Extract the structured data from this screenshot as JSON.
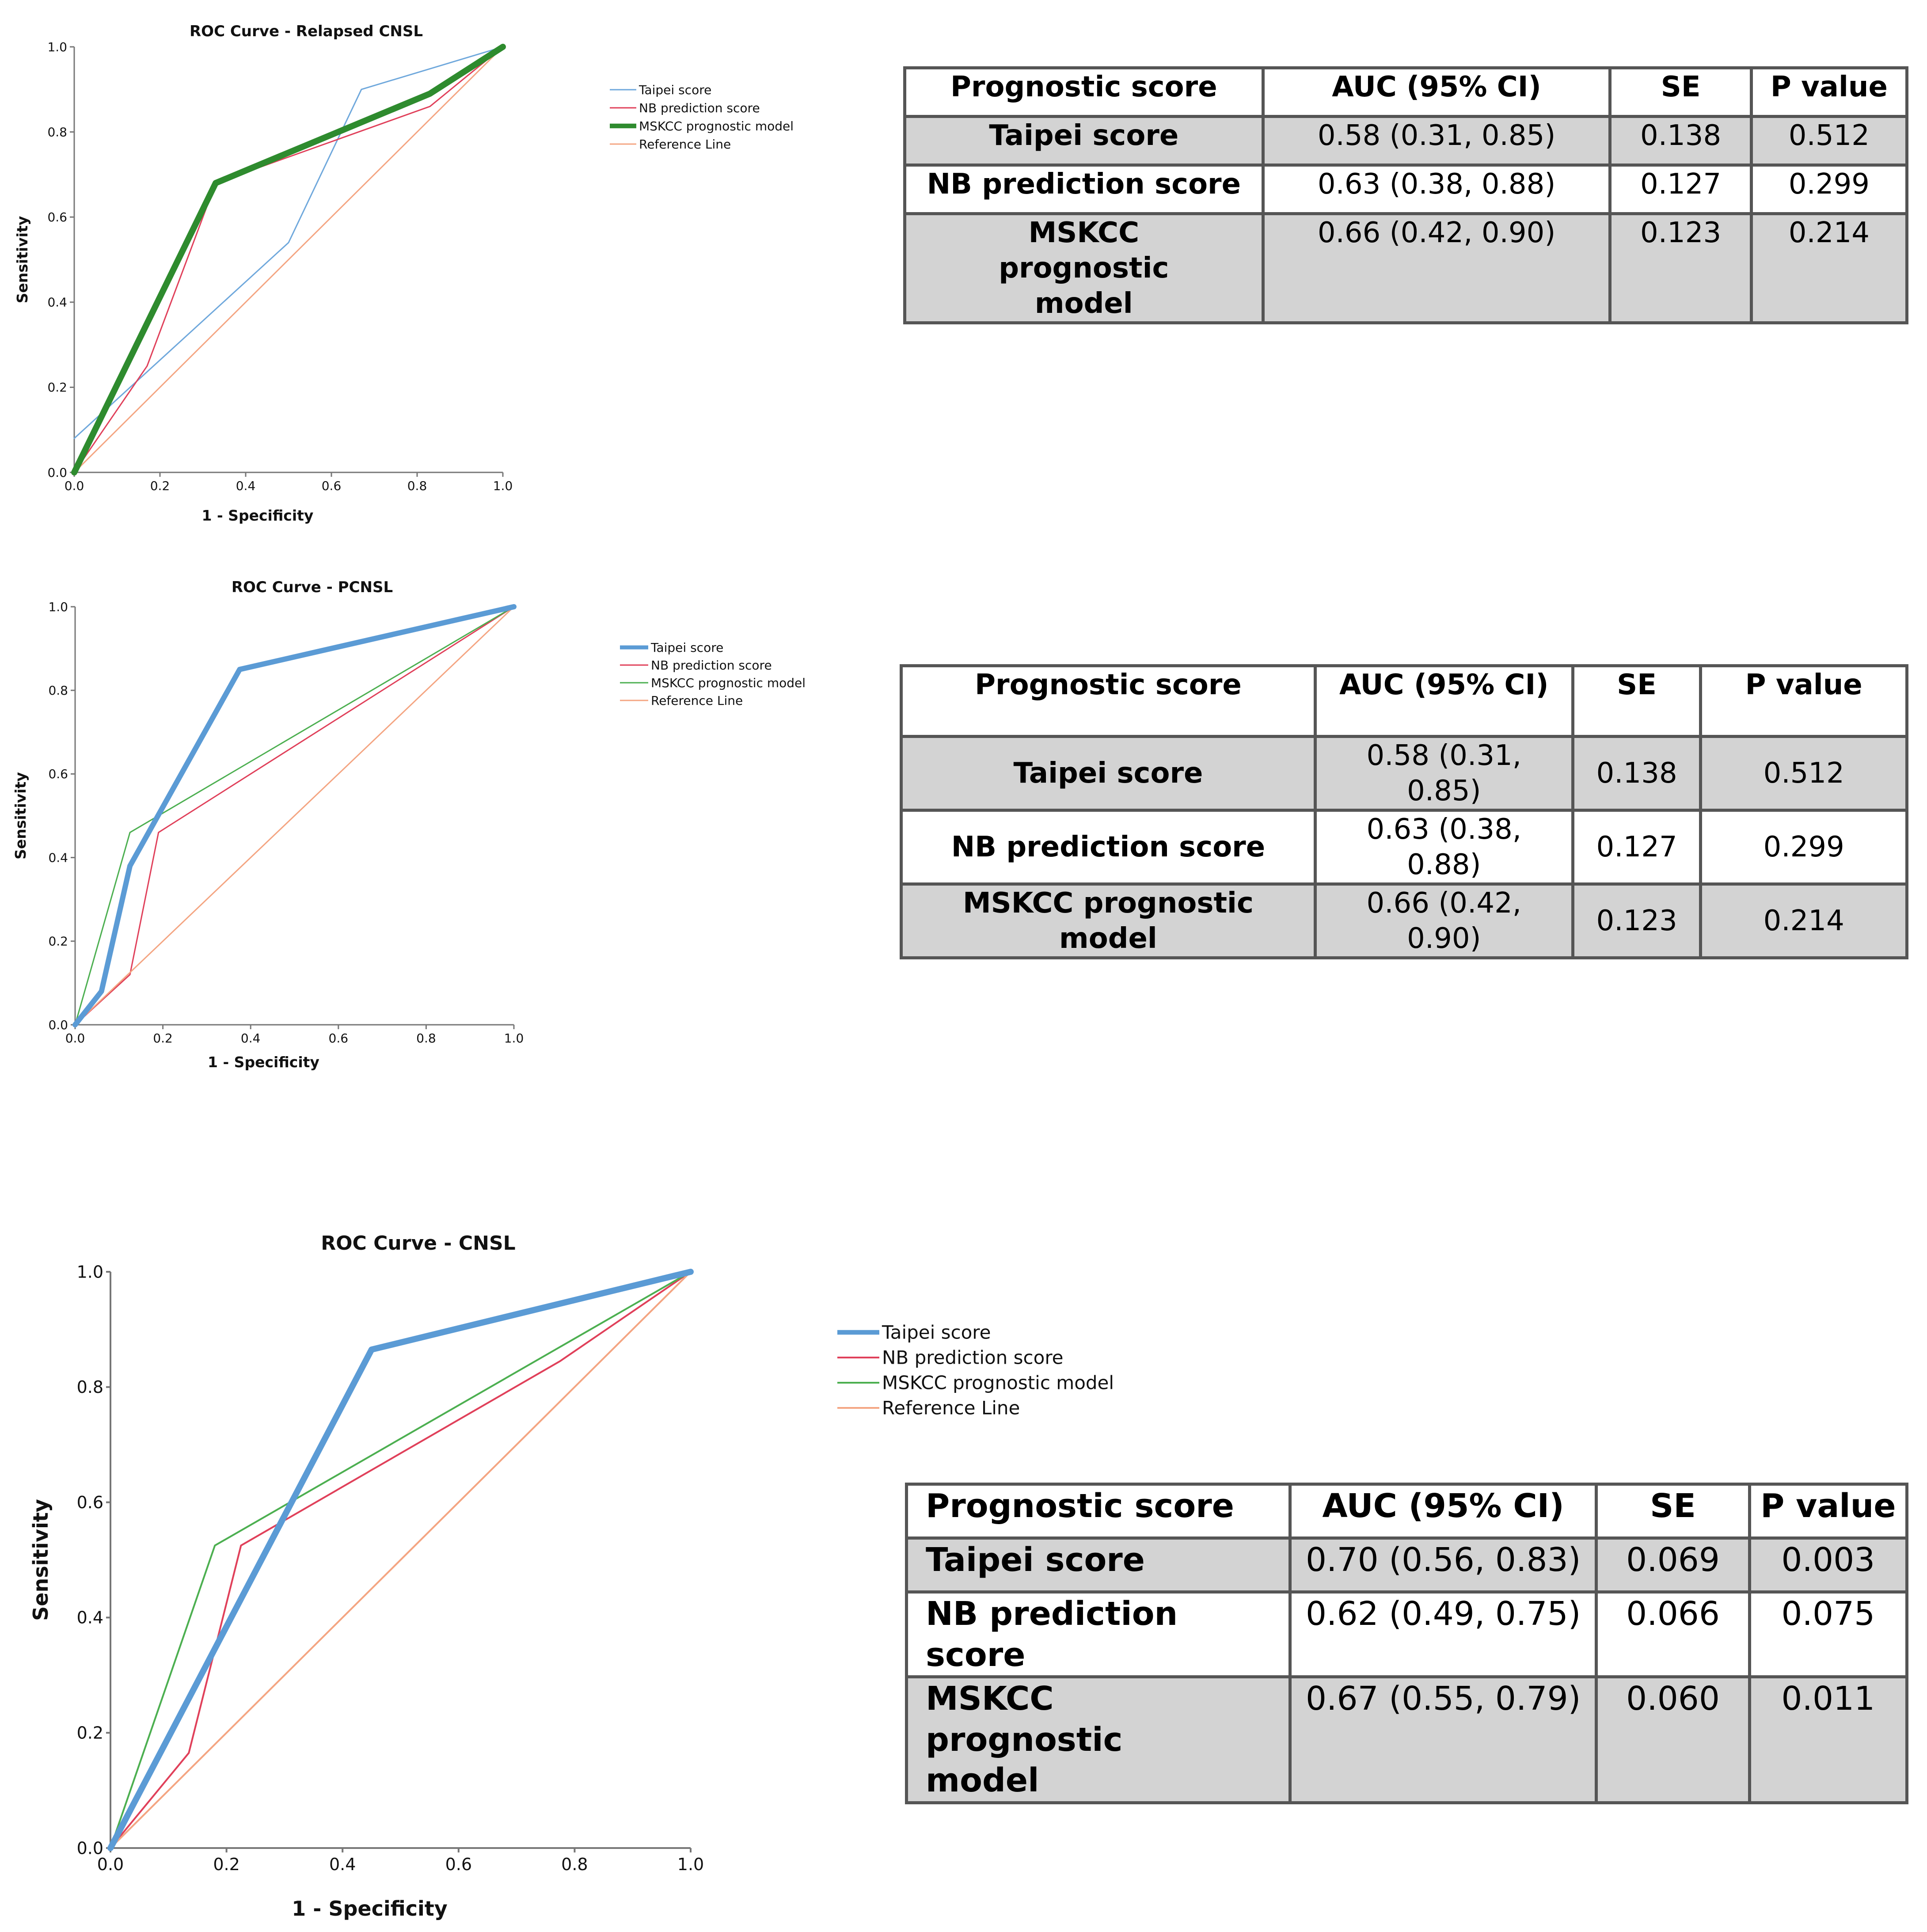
{
  "colors": {
    "taipei": "#6fa8dc",
    "taipei_thick": "#5b9bd5",
    "nb": "#e0405a",
    "mskcc": "#4caf50",
    "mskcc_thick": "#2e8b2e",
    "reference": "#f4a582",
    "axis": "#777777",
    "table_border": "#555555",
    "table_shade": "#d3d3d3"
  },
  "chart_data": [
    {
      "type": "line",
      "title": "ROC Curve - Relapsed CNSL",
      "xlabel": "1 - Specificity",
      "ylabel": "Sensitivity",
      "xlim": [
        0,
        1
      ],
      "ylim": [
        0,
        1
      ],
      "xticks": [
        "0.0",
        "0.2",
        "0.4",
        "0.6",
        "0.8",
        "1.0"
      ],
      "yticks": [
        "0.0",
        "0.2",
        "0.4",
        "0.6",
        "0.8",
        "1.0"
      ],
      "emphasized": "MSKCC prognostic model",
      "legend_position": "right",
      "series": [
        {
          "name": "Taipei score",
          "color_key": "taipei",
          "x": [
            0,
            0.5,
            0.67,
            1.0
          ],
          "y": [
            0.08,
            0.54,
            0.9,
            1.0
          ]
        },
        {
          "name": "NB prediction score",
          "color_key": "nb",
          "x": [
            0,
            0.17,
            0.33,
            0.83,
            1.0
          ],
          "y": [
            0,
            0.25,
            0.68,
            0.86,
            1.0
          ]
        },
        {
          "name": "MSKCC prognostic model",
          "color_key": "mskcc_thick",
          "x": [
            0,
            0.33,
            0.83,
            1.0
          ],
          "y": [
            0,
            0.68,
            0.89,
            1.0
          ]
        },
        {
          "name": "Reference Line",
          "color_key": "reference",
          "x": [
            0,
            1
          ],
          "y": [
            0,
            1
          ]
        }
      ]
    },
    {
      "type": "line",
      "title": "ROC Curve - PCNSL",
      "xlabel": "1 - Specificity",
      "ylabel": "Sensitivity",
      "xlim": [
        0,
        1
      ],
      "ylim": [
        0,
        1
      ],
      "xticks": [
        "0.0",
        "0.2",
        "0.4",
        "0.6",
        "0.8",
        "1.0"
      ],
      "yticks": [
        "0.0",
        "0.2",
        "0.4",
        "0.6",
        "0.8",
        "1.0"
      ],
      "emphasized": "Taipei score",
      "legend_position": "right",
      "series": [
        {
          "name": "Taipei score",
          "color_key": "taipei_thick",
          "x": [
            0,
            0.06,
            0.125,
            0.375,
            1.0
          ],
          "y": [
            0,
            0.08,
            0.38,
            0.85,
            1.0
          ]
        },
        {
          "name": "NB prediction score",
          "color_key": "nb",
          "x": [
            0,
            0.125,
            0.19,
            1.0
          ],
          "y": [
            0,
            0.12,
            0.46,
            1.0
          ]
        },
        {
          "name": "MSKCC prognostic model",
          "color_key": "mskcc",
          "x": [
            0,
            0.125,
            1.0
          ],
          "y": [
            0,
            0.46,
            1.0
          ]
        },
        {
          "name": "Reference Line",
          "color_key": "reference",
          "x": [
            0,
            1
          ],
          "y": [
            0,
            1
          ]
        }
      ]
    },
    {
      "type": "line",
      "title": "ROC Curve - CNSL",
      "xlabel": "1 - Specificity",
      "ylabel": "Sensitivity",
      "xlim": [
        0,
        1
      ],
      "ylim": [
        0,
        1
      ],
      "xticks": [
        "0.0",
        "0.2",
        "0.4",
        "0.6",
        "0.8",
        "1.0"
      ],
      "yticks": [
        "0.0",
        "0.2",
        "0.4",
        "0.6",
        "0.8",
        "1.0"
      ],
      "emphasized": "Taipei score",
      "legend_position": "right",
      "series": [
        {
          "name": "Taipei score",
          "color_key": "taipei_thick",
          "x": [
            0,
            0.45,
            1.0
          ],
          "y": [
            0,
            0.865,
            1.0
          ]
        },
        {
          "name": "NB prediction score",
          "color_key": "nb",
          "x": [
            0,
            0.135,
            0.225,
            0.775,
            1.0
          ],
          "y": [
            0,
            0.165,
            0.525,
            0.845,
            1.0
          ]
        },
        {
          "name": "MSKCC prognostic model",
          "color_key": "mskcc",
          "x": [
            0,
            0.18,
            1.0
          ],
          "y": [
            0,
            0.525,
            1.0
          ]
        },
        {
          "name": "Reference Line",
          "color_key": "reference",
          "x": [
            0,
            1
          ],
          "y": [
            0,
            1
          ]
        }
      ]
    }
  ],
  "tables": [
    {
      "headers": [
        "Prognostic score",
        "AUC (95% CI)",
        "SE",
        "P value"
      ],
      "rows": [
        [
          "Taipei score",
          "0.58 (0.31, 0.85)",
          "0.138",
          "0.512"
        ],
        [
          "NB prediction score",
          "0.63 (0.38, 0.88)",
          "0.127",
          "0.299"
        ],
        [
          "MSKCC prognostic model",
          "0.66 (0.42, 0.90)",
          "0.123",
          "0.214"
        ]
      ]
    },
    {
      "headers": [
        "Prognostic score",
        "AUC (95% CI)",
        "SE",
        "P value"
      ],
      "rows": [
        [
          "Taipei score",
          "0.58 (0.31, 0.85)",
          "0.138",
          "0.512"
        ],
        [
          "NB prediction score",
          "0.63 (0.38, 0.88)",
          "0.127",
          "0.299"
        ],
        [
          "MSKCC prognostic model",
          "0.66 (0.42, 0.90)",
          "0.123",
          "0.214"
        ]
      ]
    },
    {
      "headers": [
        "Prognostic score",
        "AUC (95% CI)",
        "SE",
        "P value"
      ],
      "rows": [
        [
          "Taipei score",
          "0.70 (0.56, 0.83)",
          "0.069",
          "0.003"
        ],
        [
          "NB prediction score",
          "0.62 (0.49, 0.75)",
          "0.066",
          "0.075"
        ],
        [
          "MSKCC prognostic model",
          "0.67 (0.55, 0.79)",
          "0.060",
          "0.011"
        ]
      ]
    }
  ]
}
